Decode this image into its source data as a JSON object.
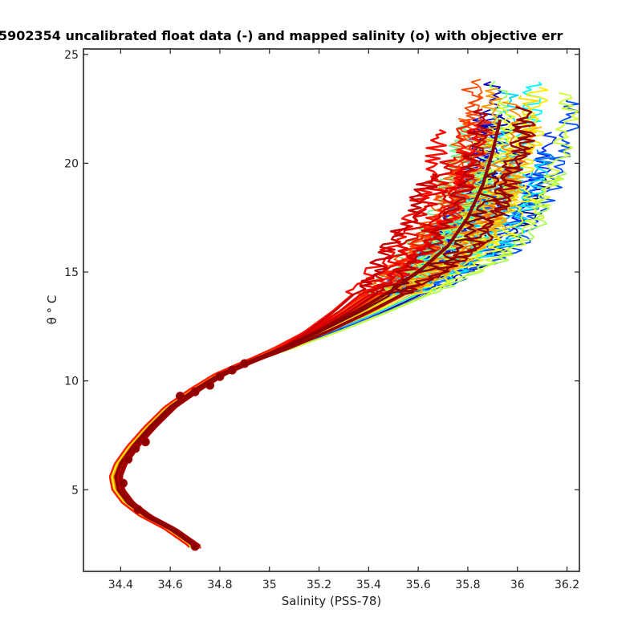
{
  "chart_data": {
    "type": "line",
    "title": "5902354 uncalibrated float data (-) and mapped salinity (o) with objective err",
    "xlabel": "Salinity (PSS-78)",
    "ylabel": "θ ° C",
    "xlim": [
      34.25,
      36.25
    ],
    "ylim": [
      1.25,
      25.25
    ],
    "x_ticks": [
      34.4,
      34.6,
      34.8,
      35,
      35.2,
      35.4,
      35.6,
      35.8,
      36,
      36.2
    ],
    "x_tick_labels": [
      "34.4",
      "34.6",
      "34.8",
      "35",
      "35.2",
      "35.4",
      "35.6",
      "35.8",
      "36",
      "36.2"
    ],
    "y_ticks": [
      5,
      10,
      15,
      20,
      25
    ],
    "y_tick_labels": [
      "5",
      "10",
      "15",
      "20",
      "25"
    ],
    "grid": false,
    "colormap": "jet",
    "profile_count": 60,
    "reference_curve": {
      "salinity": [
        34.7,
        34.6,
        34.5,
        34.43,
        34.39,
        34.38,
        34.4,
        34.45,
        34.52,
        34.6,
        34.7,
        34.8,
        34.9,
        35.05,
        35.2,
        35.35,
        35.5,
        35.62,
        35.72,
        35.8,
        35.86,
        35.9,
        35.93
      ],
      "theta": [
        2.4,
        3.2,
        3.8,
        4.4,
        5.0,
        5.6,
        6.2,
        7.0,
        7.9,
        8.8,
        9.6,
        10.3,
        10.8,
        11.5,
        12.3,
        13.2,
        14.2,
        15.2,
        16.2,
        17.5,
        19.0,
        20.5,
        22.0
      ]
    },
    "mapped_salinity_points": {
      "salinity": [
        34.7,
        34.47,
        34.41,
        34.43,
        34.46,
        34.5,
        34.64,
        34.7,
        34.76,
        34.8,
        34.85,
        34.9
      ],
      "theta": [
        2.4,
        4.1,
        5.3,
        6.4,
        6.9,
        7.2,
        9.3,
        9.5,
        9.8,
        10.2,
        10.5,
        10.8
      ]
    }
  }
}
